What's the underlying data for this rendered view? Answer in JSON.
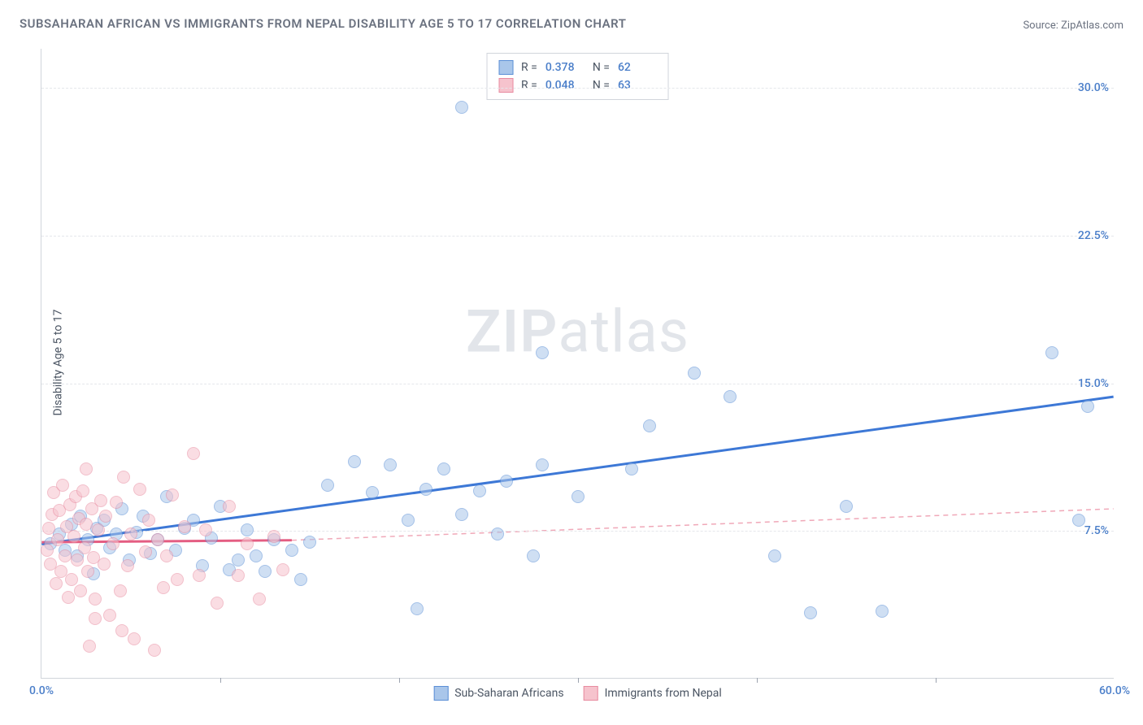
{
  "title": "SUBSAHARAN AFRICAN VS IMMIGRANTS FROM NEPAL DISABILITY AGE 5 TO 17 CORRELATION CHART",
  "source_label": "Source:",
  "source_name": "ZipAtlas.com",
  "y_axis_title": "Disability Age 5 to 17",
  "watermark_a": "ZIP",
  "watermark_b": "atlas",
  "chart": {
    "type": "scatter",
    "xlim": [
      0,
      60
    ],
    "ylim": [
      0,
      32
    ],
    "x_ticks": [
      0,
      60
    ],
    "x_tick_labels": [
      "0.0%",
      "60.0%"
    ],
    "x_minor_ticks": [
      10,
      20,
      30,
      40,
      50
    ],
    "y_ticks": [
      7.5,
      15.0,
      22.5,
      30.0
    ],
    "y_tick_labels": [
      "7.5%",
      "15.0%",
      "22.5%",
      "30.0%"
    ],
    "background_color": "#ffffff",
    "grid_color": "#e5e7eb",
    "marker_radius": 8,
    "marker_opacity": 0.55,
    "series": [
      {
        "id": "blue",
        "label": "Sub-Saharan Africans",
        "fill": "#a9c6ea",
        "stroke": "#5b8fd6",
        "r_value": "0.378",
        "n_value": "62",
        "trend": {
          "x1": 0,
          "y1": 6.8,
          "x2": 60,
          "y2": 14.3,
          "color": "#3d78d6",
          "width": 3,
          "dash": ""
        },
        "points": [
          [
            0.5,
            6.8
          ],
          [
            1.0,
            7.3
          ],
          [
            1.3,
            6.5
          ],
          [
            1.7,
            7.8
          ],
          [
            2.0,
            6.2
          ],
          [
            2.2,
            8.2
          ],
          [
            2.6,
            7.0
          ],
          [
            2.9,
            5.3
          ],
          [
            3.1,
            7.6
          ],
          [
            3.5,
            8.0
          ],
          [
            3.8,
            6.6
          ],
          [
            4.2,
            7.3
          ],
          [
            4.5,
            8.6
          ],
          [
            4.9,
            6.0
          ],
          [
            5.3,
            7.4
          ],
          [
            5.7,
            8.2
          ],
          [
            6.1,
            6.3
          ],
          [
            6.5,
            7.0
          ],
          [
            7.0,
            9.2
          ],
          [
            7.5,
            6.5
          ],
          [
            8.0,
            7.6
          ],
          [
            8.5,
            8.0
          ],
          [
            9.0,
            5.7
          ],
          [
            9.5,
            7.1
          ],
          [
            10.0,
            8.7
          ],
          [
            10.5,
            5.5
          ],
          [
            11.0,
            6.0
          ],
          [
            11.5,
            7.5
          ],
          [
            12.0,
            6.2
          ],
          [
            12.5,
            5.4
          ],
          [
            13.0,
            7.0
          ],
          [
            14.0,
            6.5
          ],
          [
            14.5,
            5.0
          ],
          [
            15.0,
            6.9
          ],
          [
            16.0,
            9.8
          ],
          [
            17.5,
            11.0
          ],
          [
            18.5,
            9.4
          ],
          [
            19.5,
            10.8
          ],
          [
            20.5,
            8.0
          ],
          [
            21.0,
            3.5
          ],
          [
            21.5,
            9.6
          ],
          [
            22.5,
            10.6
          ],
          [
            23.5,
            8.3
          ],
          [
            24.5,
            9.5
          ],
          [
            25.5,
            7.3
          ],
          [
            26.0,
            10.0
          ],
          [
            27.5,
            6.2
          ],
          [
            28.0,
            10.8
          ],
          [
            23.5,
            29.0
          ],
          [
            28.0,
            16.5
          ],
          [
            30.0,
            9.2
          ],
          [
            33.0,
            10.6
          ],
          [
            34.0,
            12.8
          ],
          [
            36.5,
            15.5
          ],
          [
            38.5,
            14.3
          ],
          [
            41.0,
            6.2
          ],
          [
            43.0,
            3.3
          ],
          [
            45.0,
            8.7
          ],
          [
            47.0,
            3.4
          ],
          [
            56.5,
            16.5
          ],
          [
            58.0,
            8.0
          ],
          [
            58.5,
            13.8
          ]
        ]
      },
      {
        "id": "pink",
        "label": "Immigrants from Nepal",
        "fill": "#f6c3cd",
        "stroke": "#e88ba0",
        "r_value": "0.048",
        "n_value": "63",
        "trend_solid": {
          "x1": 0,
          "y1": 6.9,
          "x2": 14,
          "y2": 7.0,
          "color": "#e45d82",
          "width": 3
        },
        "trend_dash": {
          "x1": 14,
          "y1": 7.0,
          "x2": 60,
          "y2": 8.6,
          "color": "#f0a8b8",
          "width": 1.5,
          "dash": "6 5"
        },
        "points": [
          [
            0.3,
            6.5
          ],
          [
            0.4,
            7.6
          ],
          [
            0.5,
            5.8
          ],
          [
            0.6,
            8.3
          ],
          [
            0.7,
            9.4
          ],
          [
            0.8,
            4.8
          ],
          [
            0.9,
            7.0
          ],
          [
            1.0,
            8.5
          ],
          [
            1.1,
            5.4
          ],
          [
            1.2,
            9.8
          ],
          [
            1.3,
            6.2
          ],
          [
            1.4,
            7.7
          ],
          [
            1.5,
            4.1
          ],
          [
            1.6,
            8.8
          ],
          [
            1.7,
            5.0
          ],
          [
            1.8,
            7.2
          ],
          [
            1.9,
            9.2
          ],
          [
            2.0,
            6.0
          ],
          [
            2.1,
            8.1
          ],
          [
            2.2,
            4.4
          ],
          [
            2.3,
            9.5
          ],
          [
            2.4,
            6.6
          ],
          [
            2.5,
            7.8
          ],
          [
            2.6,
            5.4
          ],
          [
            2.7,
            1.6
          ],
          [
            2.8,
            8.6
          ],
          [
            2.9,
            6.1
          ],
          [
            3.0,
            4.0
          ],
          [
            3.2,
            7.5
          ],
          [
            3.3,
            9.0
          ],
          [
            3.5,
            5.8
          ],
          [
            3.6,
            8.2
          ],
          [
            3.8,
            3.2
          ],
          [
            4.0,
            6.8
          ],
          [
            4.2,
            8.9
          ],
          [
            4.4,
            4.4
          ],
          [
            4.6,
            10.2
          ],
          [
            4.8,
            5.7
          ],
          [
            5.0,
            7.3
          ],
          [
            5.2,
            2.0
          ],
          [
            5.5,
            9.6
          ],
          [
            5.8,
            6.4
          ],
          [
            6.0,
            8.0
          ],
          [
            6.3,
            1.4
          ],
          [
            6.5,
            7.0
          ],
          [
            6.8,
            4.6
          ],
          [
            7.0,
            6.2
          ],
          [
            7.3,
            9.3
          ],
          [
            7.6,
            5.0
          ],
          [
            8.0,
            7.7
          ],
          [
            8.5,
            11.4
          ],
          [
            8.8,
            5.2
          ],
          [
            9.2,
            7.5
          ],
          [
            9.8,
            3.8
          ],
          [
            10.5,
            8.7
          ],
          [
            11.0,
            5.2
          ],
          [
            11.5,
            6.8
          ],
          [
            12.2,
            4.0
          ],
          [
            13.0,
            7.2
          ],
          [
            13.5,
            5.5
          ],
          [
            2.5,
            10.6
          ],
          [
            3.0,
            3.0
          ],
          [
            4.5,
            2.4
          ]
        ]
      }
    ]
  },
  "legend_stats": {
    "r_label": "R =",
    "n_label": "N ="
  }
}
